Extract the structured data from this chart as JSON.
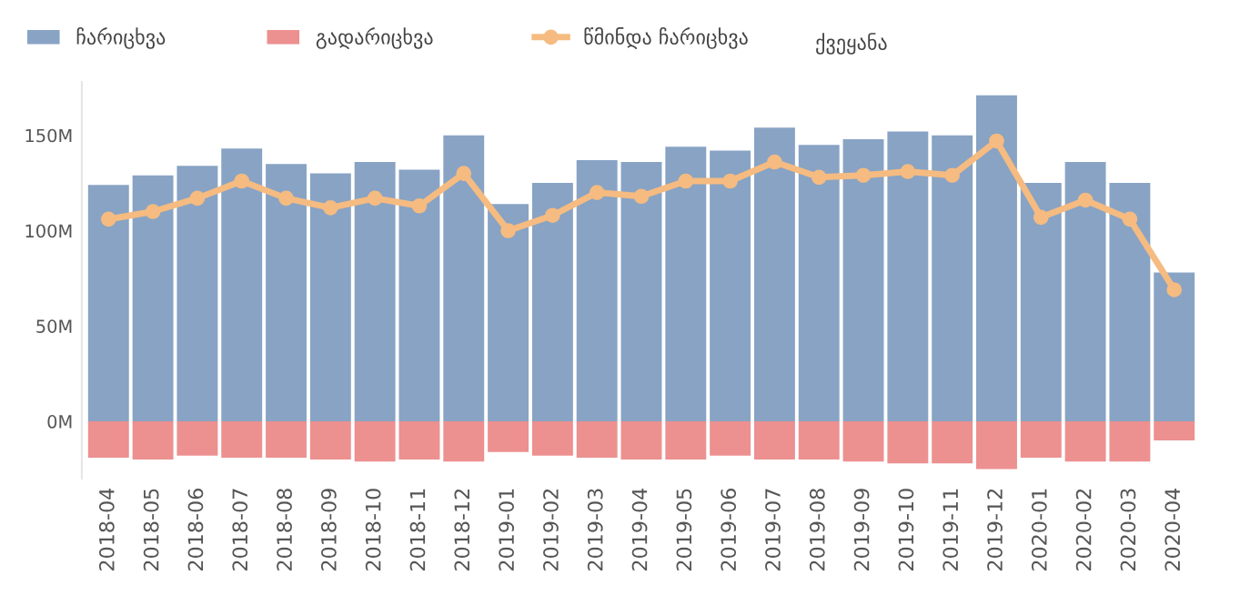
{
  "chart_data": {
    "type": "bar",
    "stacked": true,
    "categories": [
      "2018-04",
      "2018-05",
      "2018-06",
      "2018-07",
      "2018-08",
      "2018-09",
      "2018-10",
      "2018-11",
      "2018-12",
      "2019-01",
      "2019-02",
      "2019-03",
      "2019-04",
      "2019-05",
      "2019-06",
      "2019-07",
      "2019-08",
      "2019-09",
      "2019-10",
      "2019-11",
      "2019-12",
      "2020-01",
      "2020-02",
      "2020-03",
      "2020-04"
    ],
    "series": [
      {
        "name": "ჩარიცხვა",
        "color": "#88a3c4",
        "values": [
          124,
          129,
          134,
          143,
          135,
          130,
          136,
          132,
          150,
          114,
          125,
          137,
          136,
          144,
          142,
          154,
          145,
          148,
          152,
          150,
          171,
          125,
          136,
          125,
          78
        ]
      },
      {
        "name": "გადარიცხვა",
        "color": "#ec9090",
        "values": [
          -19,
          -20,
          -18,
          -19,
          -19,
          -20,
          -21,
          -20,
          -21,
          -16,
          -18,
          -19,
          -20,
          -20,
          -18,
          -20,
          -20,
          -21,
          -22,
          -22,
          -25,
          -19,
          -21,
          -21,
          -10
        ]
      },
      {
        "name": "წმინდა ჩარიცხვა",
        "type": "line",
        "color": "#f5bb80",
        "marker": "circle",
        "values": [
          106,
          110,
          117,
          126,
          117,
          112,
          117,
          113,
          130,
          100,
          108,
          120,
          118,
          126,
          126,
          136,
          128,
          129,
          131,
          129,
          147,
          107,
          116,
          106,
          69
        ]
      }
    ],
    "ylim": [
      -30,
      178
    ],
    "yticks": [
      {
        "value": 0,
        "label": "0M"
      },
      {
        "value": 50,
        "label": "50M"
      },
      {
        "value": 100,
        "label": "100M"
      },
      {
        "value": 150,
        "label": "150M"
      }
    ],
    "legend": "top left",
    "annotations": [
      "ქვეყანა"
    ]
  }
}
